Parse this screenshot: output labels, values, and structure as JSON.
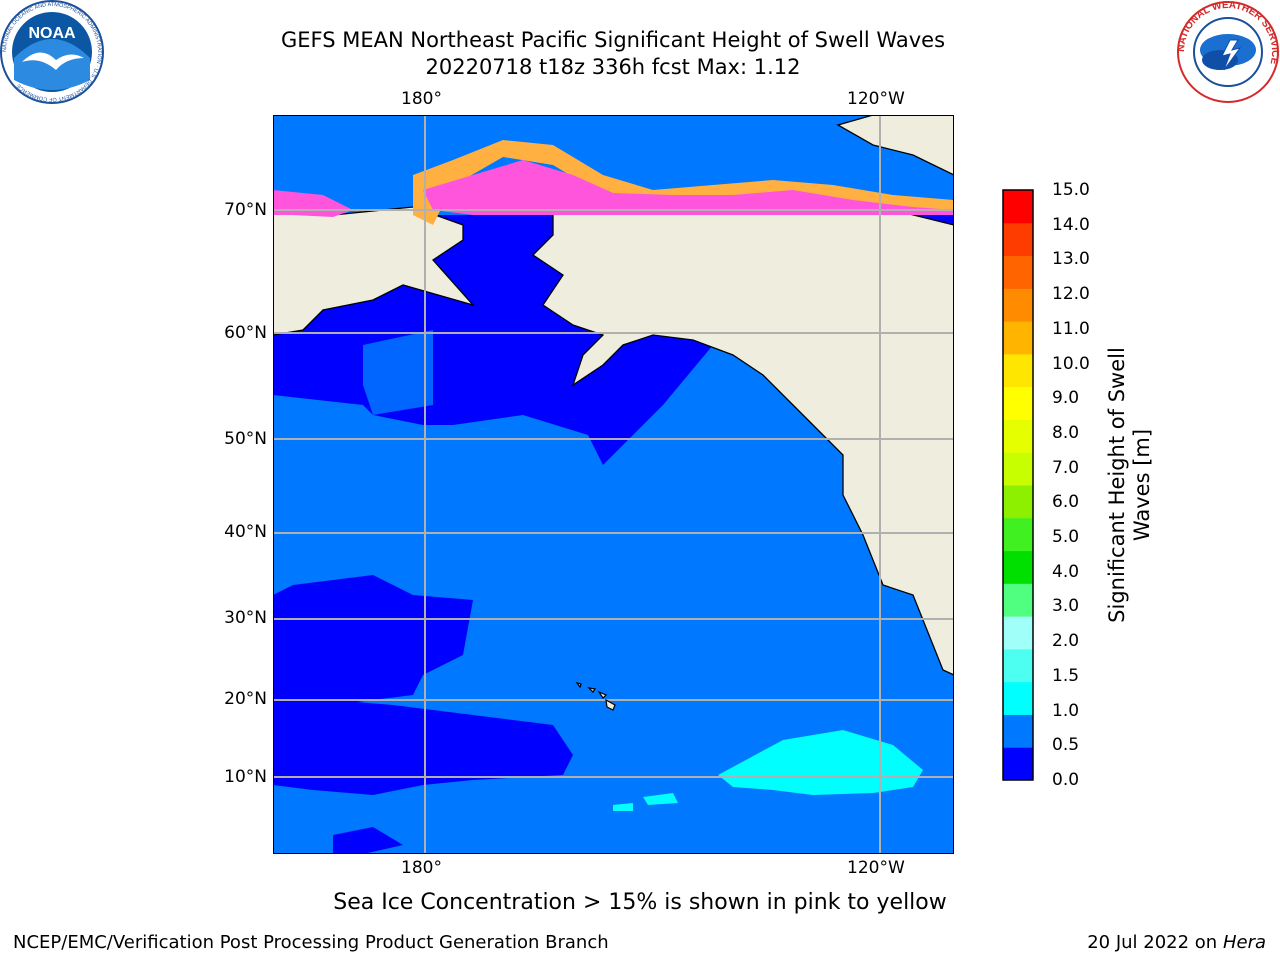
{
  "title_line1": "GEFS MEAN Northeast Pacific Significant Height of Swell Waves",
  "title_line2": "20220718 t18z 336h fcst   Max: 1.12",
  "map": {
    "lon_labels_top": [
      "180°",
      "120°W"
    ],
    "lon_labels_bottom": [
      "180°",
      "120°W"
    ],
    "lat_labels": [
      "70°N",
      "60°N",
      "50°N",
      "40°N",
      "30°N",
      "20°N",
      "10°N"
    ],
    "colors": {
      "land": "#efedde",
      "ocean_0_05": "#0000ff",
      "ocean_05_1": "#0078ff",
      "ocean_1_15": "#00ffff",
      "sea_ice_pink": "#ff55dd",
      "sea_ice_orange": "#ffb040",
      "grid": "#b0b0b0"
    }
  },
  "colorbar": {
    "label": "Significant Height of Swell Waves [m]",
    "ticks": [
      "15.0",
      "14.0",
      "13.0",
      "12.0",
      "11.0",
      "10.0",
      "9.0",
      "8.0",
      "7.0",
      "6.0",
      "5.0",
      "4.0",
      "3.0",
      "2.0",
      "1.5",
      "1.0",
      "0.5",
      "0.0"
    ],
    "colors": [
      "#0000ff",
      "#0078ff",
      "#00ffff",
      "#4dfff0",
      "#a0fff8",
      "#50ff80",
      "#00e000",
      "#40f020",
      "#8cf000",
      "#c8ff00",
      "#e6ff00",
      "#ffff00",
      "#ffe600",
      "#ffb400",
      "#ff8c00",
      "#ff6400",
      "#ff3c00",
      "#ff0000"
    ]
  },
  "note": "Sea Ice Concentration > 15% is shown in pink to yellow",
  "footer_left": "NCEP/EMC/Verification Post Processing Product Generation Branch",
  "footer_right_prefix": "20 Jul 2022 on ",
  "footer_right_host": "Hera",
  "logos": {
    "noaa_text": "NOAA",
    "noaa_ring": "NATIONAL OCEANIC AND ATMOSPHERIC ADMINISTRATION · U.S. DEPARTMENT OF COMMERCE",
    "nws_ring": "NATIONAL WEATHER SERVICE"
  }
}
